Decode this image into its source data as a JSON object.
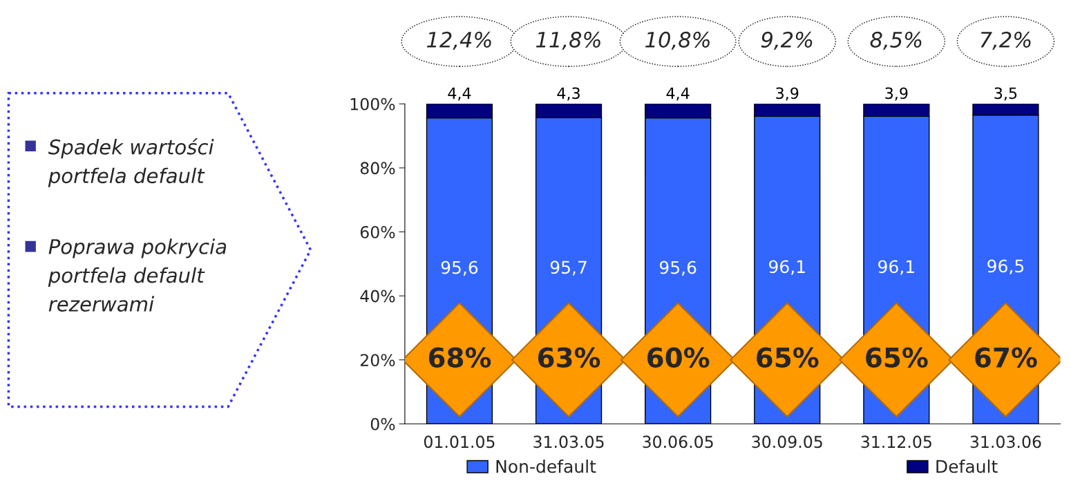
{
  "chart_data": {
    "type": "bar",
    "stacked": true,
    "categories": [
      "01.01.05",
      "31.03.05",
      "30.06.05",
      "30.09.05",
      "31.12.05",
      "31.03.06"
    ],
    "series": [
      {
        "name": "Non-default",
        "color": "#3366ff",
        "values": [
          95.6,
          95.7,
          95.6,
          96.1,
          96.1,
          96.5
        ],
        "value_labels": [
          "95,6",
          "95,7",
          "95,6",
          "96,1",
          "96,1",
          "96,5"
        ]
      },
      {
        "name": "Default",
        "color": "#000080",
        "values": [
          4.4,
          4.3,
          4.4,
          3.9,
          3.9,
          3.5
        ],
        "value_labels": [
          "4,4",
          "4,3",
          "4,4",
          "3,9",
          "3,9",
          "3,5"
        ]
      }
    ],
    "ylim": [
      0,
      100
    ],
    "yticks": [
      {
        "value": 0,
        "label": "0%"
      },
      {
        "value": 20,
        "label": "20%"
      },
      {
        "value": 40,
        "label": "40%"
      },
      {
        "value": 60,
        "label": "60%"
      },
      {
        "value": 80,
        "label": "80%"
      },
      {
        "value": 100,
        "label": "100%"
      }
    ],
    "grid": false,
    "legend": "bottom",
    "annotations": [
      "12,4%",
      "11,8%",
      "10,8%",
      "9,2%",
      "8,5%",
      "7,2%",
      "68%",
      "63%",
      "60%",
      "65%",
      "65%",
      "67%",
      "Spadek wartości\nportfela default",
      "Poprawa pokrycia\nportfela default\nrezerwami"
    ]
  }
}
